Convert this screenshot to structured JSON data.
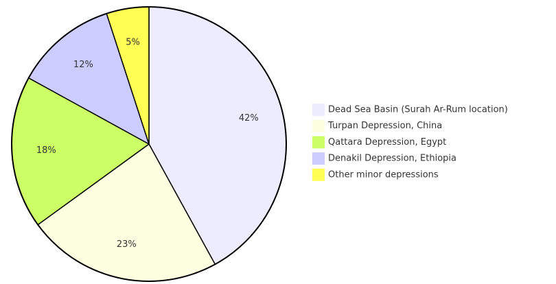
{
  "chart_data": {
    "type": "pie",
    "categories": [
      "Dead Sea Basin (Surah Ar-Rum location)",
      "Turpan Depression, China",
      "Qattara Depression, Egypt",
      "Denakil Depression, Ethiopia",
      "Other minor depressions"
    ],
    "values": [
      42,
      23,
      18,
      12,
      5
    ],
    "value_labels": [
      "42%",
      "23%",
      "18%",
      "12%",
      "5%"
    ],
    "colors": [
      "#ececfe",
      "#fefee0",
      "#ccff66",
      "#ccccff",
      "#ffff55"
    ],
    "legend": "right"
  }
}
